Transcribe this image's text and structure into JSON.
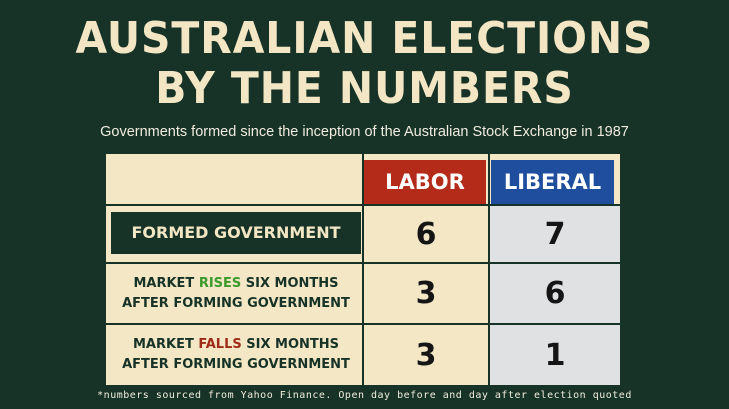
{
  "title_line1": "AUSTRALIAN ELECTIONS",
  "title_line2": "BY THE NUMBERS",
  "subtitle": "Governments formed since the inception of the Australian Stock Exchange in 1987",
  "columns": {
    "labor": "LABOR",
    "liberal": "LIBERAL"
  },
  "rows": [
    {
      "label": "FORMED GOVERNMENT",
      "labor": "6",
      "liberal": "7"
    },
    {
      "label_pre": "MARKET ",
      "label_key": "RISES",
      "label_post": " SIX MONTHS",
      "label_line2": "AFTER FORMING GOVERNMENT",
      "labor": "3",
      "liberal": "6"
    },
    {
      "label_pre": "MARKET ",
      "label_key": "FALLS",
      "label_post": " SIX MONTHS",
      "label_line2": "AFTER FORMING GOVERNMENT",
      "labor": "3",
      "liberal": "1"
    }
  ],
  "footnote": "*numbers sourced from Yahoo Finance. Open day before and day after election quoted",
  "colors": {
    "background": "#173226",
    "panel": "#f3e7c6",
    "labor": "#b42b1a",
    "liberal": "#1f4e9e",
    "rises": "#3c9a2c",
    "falls": "#a02a1a"
  }
}
